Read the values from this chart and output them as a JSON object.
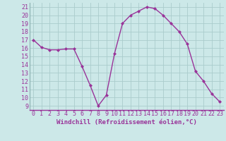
{
  "hours": [
    0,
    1,
    2,
    3,
    4,
    5,
    6,
    7,
    8,
    9,
    10,
    11,
    12,
    13,
    14,
    15,
    16,
    17,
    18,
    19,
    20,
    21,
    22,
    23
  ],
  "values": [
    17.0,
    16.1,
    15.8,
    15.8,
    15.9,
    15.9,
    13.8,
    11.5,
    9.0,
    10.3,
    15.3,
    19.0,
    20.0,
    20.5,
    21.0,
    20.8,
    20.0,
    19.0,
    18.0,
    16.5,
    13.2,
    12.0,
    10.5,
    9.5
  ],
  "line_color": "#993399",
  "marker": "D",
  "marker_size": 2.0,
  "bg_color": "#cce8e8",
  "grid_color": "#aacccc",
  "xlabel": "Windchill (Refroidissement éolien,°C)",
  "xlabel_color": "#993399",
  "xlabel_fontsize": 6.5,
  "tick_color": "#993399",
  "tick_fontsize": 6,
  "ylim": [
    8.5,
    21.5
  ],
  "yticks": [
    9,
    10,
    11,
    12,
    13,
    14,
    15,
    16,
    17,
    18,
    19,
    20,
    21
  ],
  "xticks": [
    0,
    1,
    2,
    3,
    4,
    5,
    6,
    7,
    8,
    9,
    10,
    11,
    12,
    13,
    14,
    15,
    16,
    17,
    18,
    19,
    20,
    21,
    22,
    23
  ],
  "linewidth": 1.0
}
